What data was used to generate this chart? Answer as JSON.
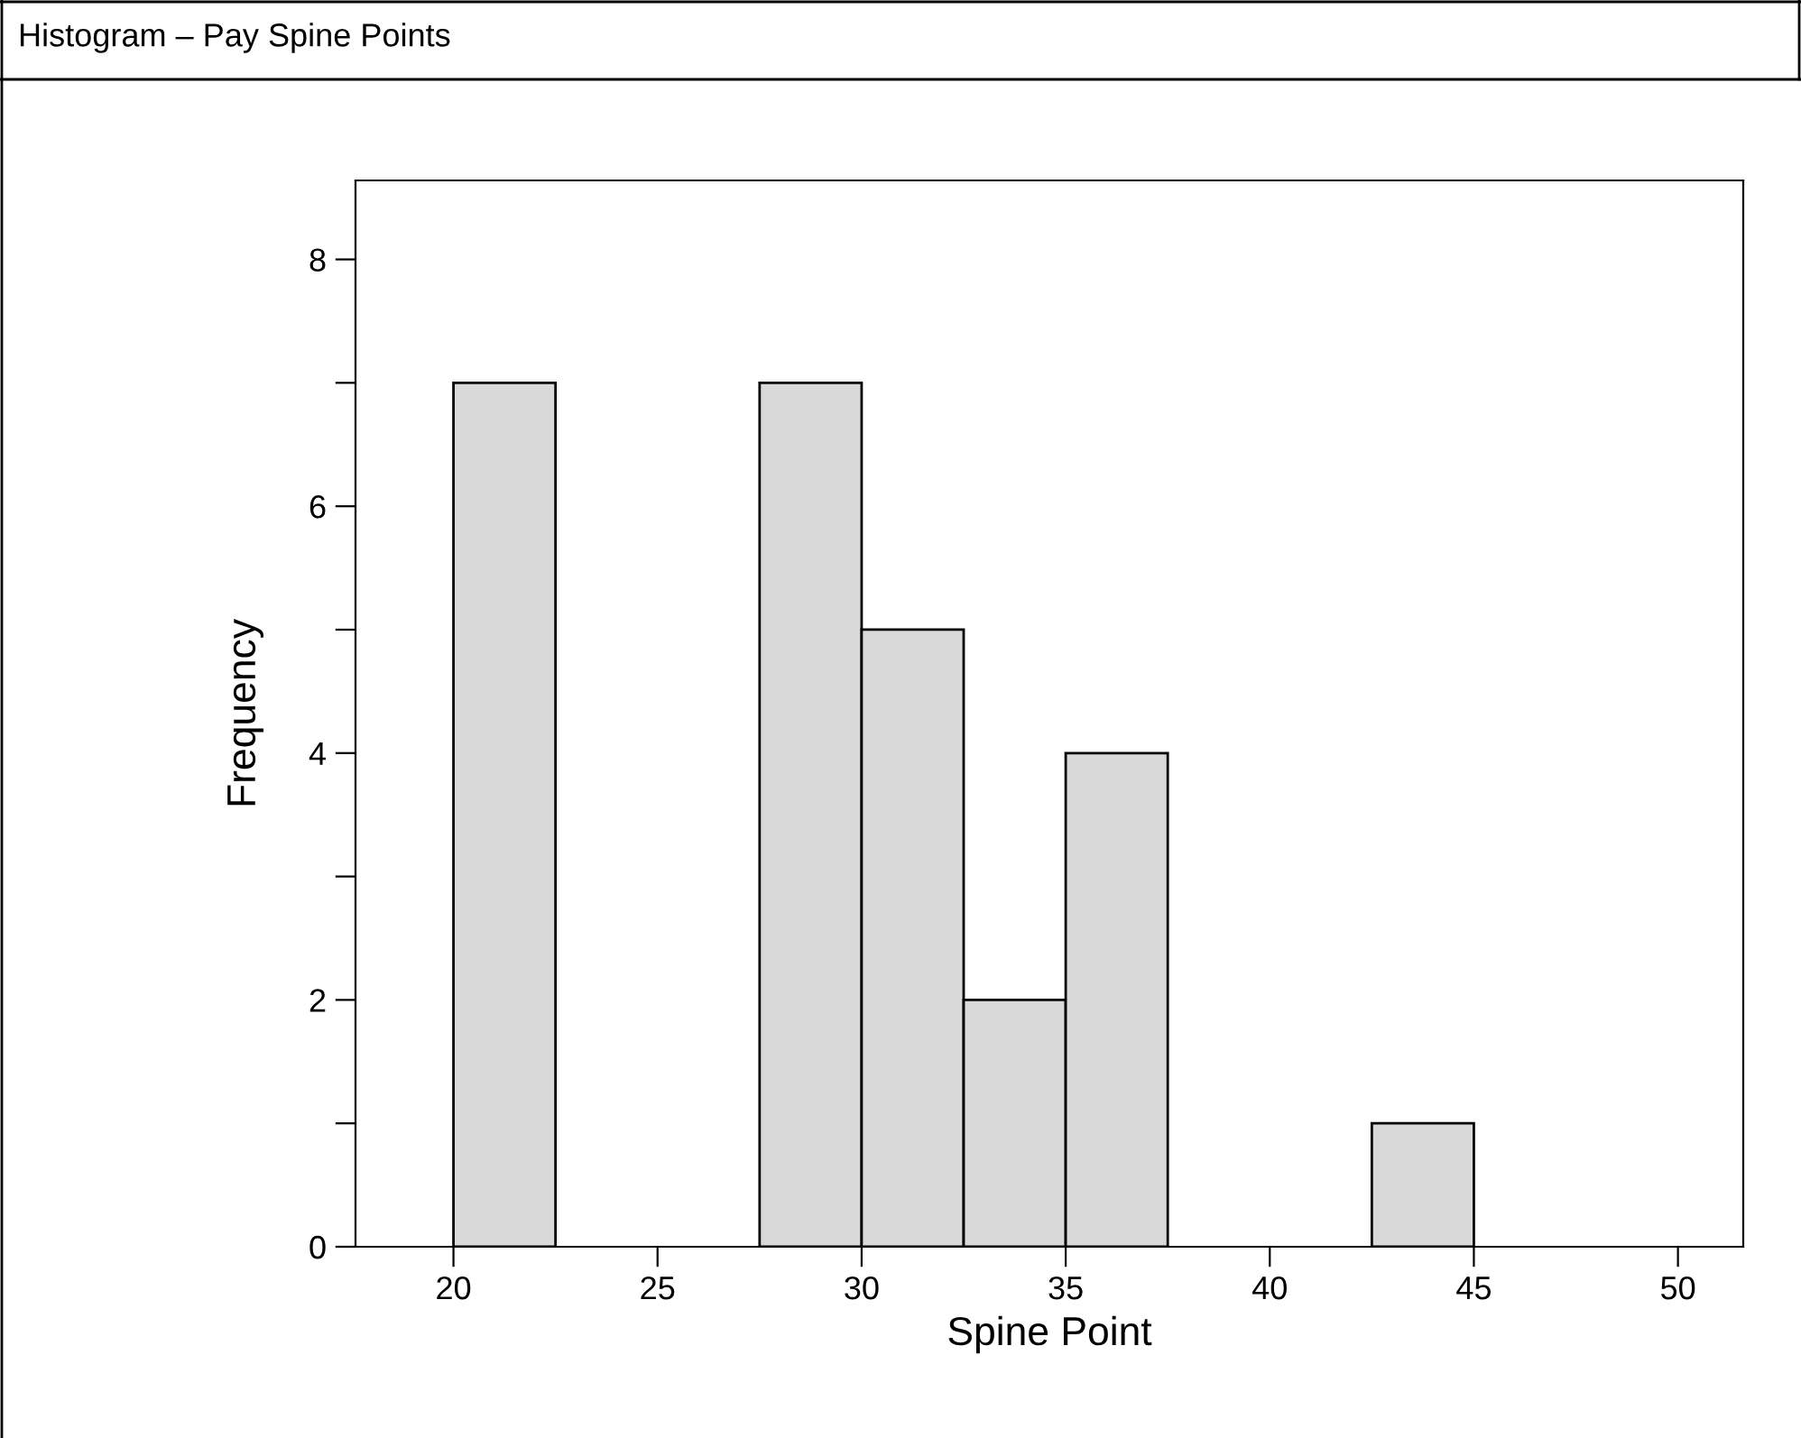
{
  "chart_data": {
    "type": "histogram",
    "title": "Histogram – Pay Spine Points",
    "xlabel": "Spine Point",
    "ylabel": "Frequency",
    "bins": [
      20,
      22.5,
      25,
      27.5,
      30,
      32.5,
      35,
      37.5,
      40,
      42.5,
      45
    ],
    "values": [
      7,
      0,
      0,
      7,
      5,
      2,
      4,
      0,
      0,
      1
    ],
    "color": "#d9d9d9",
    "xlim": [
      17.6,
      51.6
    ],
    "xticks": [
      20,
      25,
      30,
      35,
      40,
      45,
      50
    ],
    "ylim": [
      0,
      8.64
    ],
    "yticks": [
      0,
      {
        "value": 1,
        "label": null
      },
      2,
      {
        "value": 3,
        "label": null
      },
      4,
      {
        "value": 5,
        "label": null
      },
      6,
      {
        "value": 7,
        "label": null
      },
      8
    ],
    "grid": false,
    "legend": false
  }
}
